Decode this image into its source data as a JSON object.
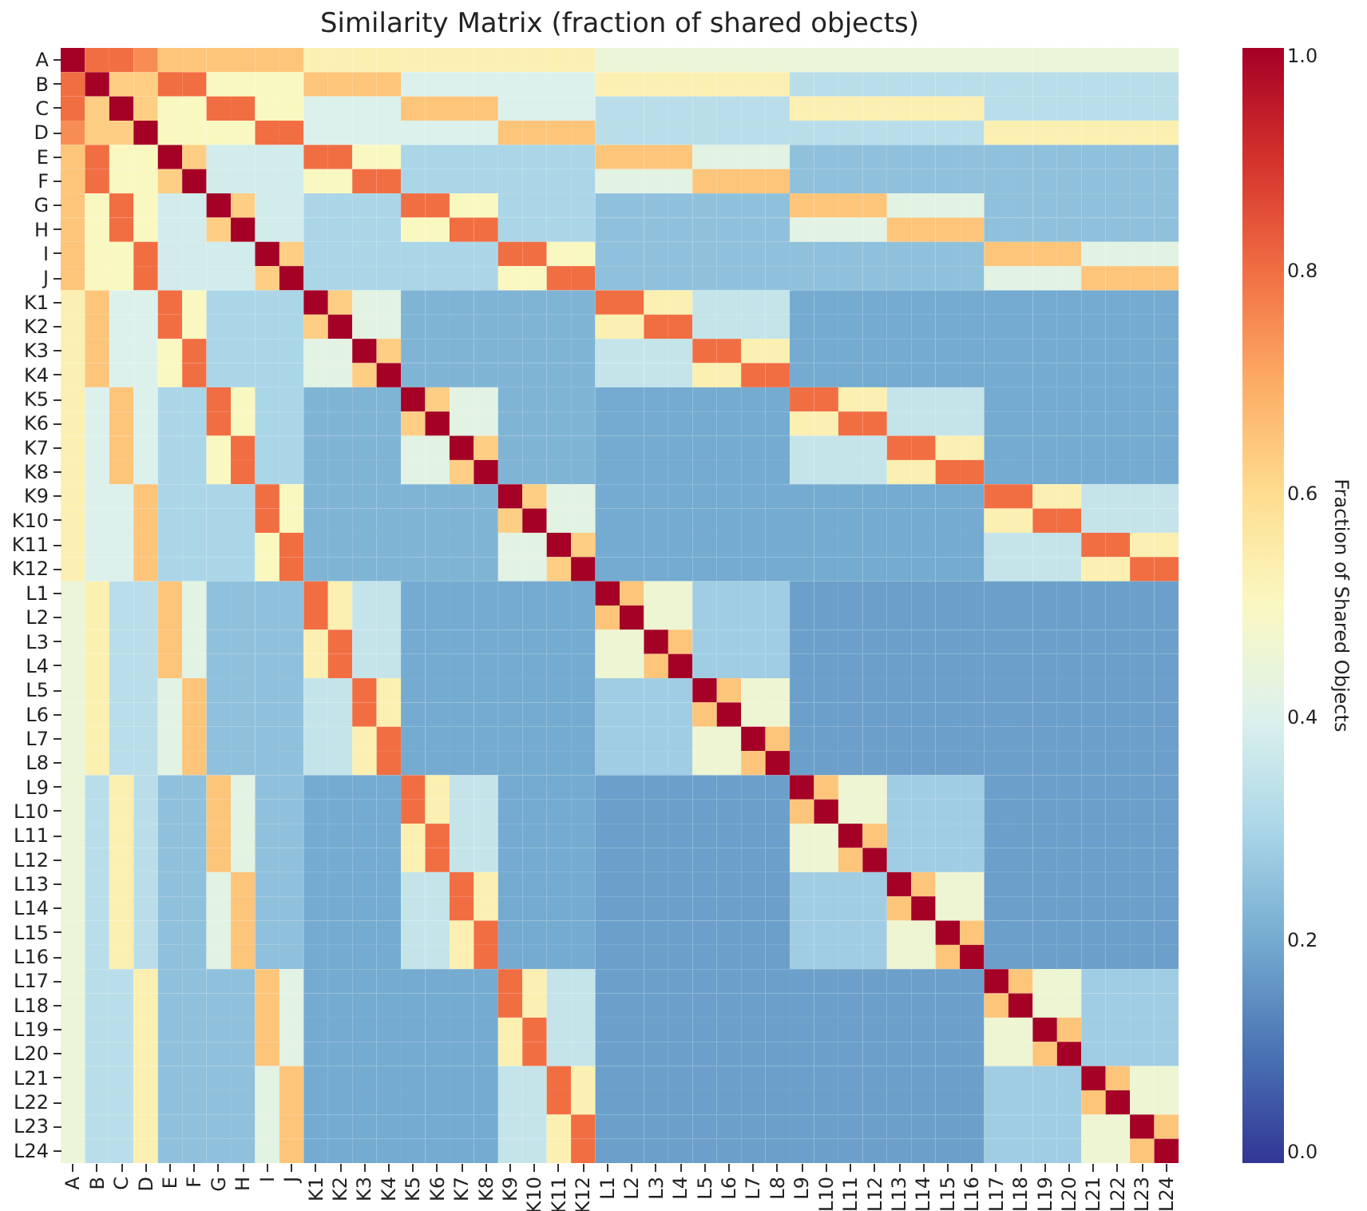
{
  "chart_data": {
    "type": "heatmap",
    "title": "Similarity Matrix (fraction of shared objects)",
    "clabel": "Fraction of Shared Objects",
    "categories": [
      "A",
      "B",
      "C",
      "D",
      "E",
      "F",
      "G",
      "H",
      "I",
      "J",
      "K1",
      "K2",
      "K3",
      "K4",
      "K5",
      "K6",
      "K7",
      "K8",
      "K9",
      "K10",
      "K11",
      "K12",
      "L1",
      "L2",
      "L3",
      "L4",
      "L5",
      "L6",
      "L7",
      "L8",
      "L9",
      "L10",
      "L11",
      "L12",
      "L13",
      "L14",
      "L15",
      "L16",
      "L17",
      "L18",
      "L19",
      "L20",
      "L21",
      "L22",
      "L23",
      "L24"
    ],
    "y_categories": [
      "A",
      "B",
      "C",
      "D",
      "E",
      "F",
      "G",
      "H",
      "I",
      "J",
      "K1",
      "K2",
      "K3",
      "K4",
      "K5",
      "K6",
      "K7",
      "K8",
      "K9",
      "K10",
      "K11",
      "K12",
      "L1",
      "L2",
      "L3",
      "L4",
      "L5",
      "L6",
      "L7",
      "L8",
      "L9",
      "L10",
      "L11",
      "L12",
      "L13",
      "L14",
      "L15",
      "L16",
      "L17",
      "L18",
      "L19",
      "L20",
      "L21",
      "L22",
      "L23",
      "L24"
    ],
    "clim": [
      0,
      1
    ],
    "cticks": [
      {
        "value": 0,
        "label": "0.0"
      },
      {
        "value": 0.2,
        "label": "0.2"
      },
      {
        "value": 0.4,
        "label": "0.4"
      },
      {
        "value": 0.6,
        "label": "0.6"
      },
      {
        "value": 0.8,
        "label": "0.8"
      },
      {
        "value": 1,
        "label": "1.0"
      }
    ],
    "cells": [
      [
        1,
        0.8,
        0.8,
        0.75,
        0.65,
        0.65,
        0.65,
        0.65,
        0.65,
        0.65,
        0.53,
        0.53,
        0.53,
        0.53,
        0.53,
        0.53,
        0.53,
        0.53,
        0.53,
        0.53,
        0.53,
        0.53,
        0.45,
        0.45,
        0.45,
        0.45,
        0.45,
        0.45,
        0.45,
        0.45,
        0.45,
        0.45,
        0.45,
        0.45,
        0.45,
        0.45,
        0.45,
        0.45,
        0.45,
        0.45,
        0.45,
        0.45,
        0.45,
        0.45,
        0.45,
        0.45
      ],
      [
        0.8,
        1,
        0.63,
        0.63,
        0.8,
        0.8,
        0.5,
        0.5,
        0.5,
        0.5,
        0.65,
        0.65,
        0.65,
        0.65,
        0.4,
        0.4,
        0.4,
        0.4,
        0.4,
        0.4,
        0.4,
        0.4,
        0.53,
        0.53,
        0.53,
        0.53,
        0.53,
        0.53,
        0.53,
        0.53,
        0.33,
        0.33,
        0.33,
        0.33,
        0.33,
        0.33,
        0.33,
        0.33,
        0.33,
        0.33,
        0.33,
        0.33,
        0.33,
        0.33,
        0.33,
        0.33
      ],
      [
        0.8,
        0.63,
        1,
        0.63,
        0.5,
        0.5,
        0.8,
        0.8,
        0.5,
        0.5,
        0.4,
        0.4,
        0.4,
        0.4,
        0.65,
        0.65,
        0.65,
        0.65,
        0.4,
        0.4,
        0.4,
        0.4,
        0.33,
        0.33,
        0.33,
        0.33,
        0.33,
        0.33,
        0.33,
        0.33,
        0.53,
        0.53,
        0.53,
        0.53,
        0.53,
        0.53,
        0.53,
        0.53,
        0.33,
        0.33,
        0.33,
        0.33,
        0.33,
        0.33,
        0.33,
        0.33
      ],
      [
        0.75,
        0.63,
        0.63,
        1,
        0.5,
        0.5,
        0.5,
        0.5,
        0.8,
        0.8,
        0.4,
        0.4,
        0.4,
        0.4,
        0.4,
        0.4,
        0.4,
        0.4,
        0.65,
        0.65,
        0.65,
        0.65,
        0.33,
        0.33,
        0.33,
        0.33,
        0.33,
        0.33,
        0.33,
        0.33,
        0.33,
        0.33,
        0.33,
        0.33,
        0.33,
        0.33,
        0.33,
        0.33,
        0.53,
        0.53,
        0.53,
        0.53,
        0.53,
        0.53,
        0.53,
        0.53
      ],
      [
        0.65,
        0.8,
        0.5,
        0.5,
        1,
        0.63,
        0.38,
        0.38,
        0.38,
        0.38,
        0.8,
        0.8,
        0.5,
        0.5,
        0.3,
        0.3,
        0.3,
        0.3,
        0.3,
        0.3,
        0.3,
        0.3,
        0.65,
        0.65,
        0.65,
        0.65,
        0.42,
        0.42,
        0.42,
        0.42,
        0.25,
        0.25,
        0.25,
        0.25,
        0.25,
        0.25,
        0.25,
        0.25,
        0.25,
        0.25,
        0.25,
        0.25,
        0.25,
        0.25,
        0.25,
        0.25
      ],
      [
        0.65,
        0.8,
        0.5,
        0.5,
        0.63,
        1,
        0.38,
        0.38,
        0.38,
        0.38,
        0.5,
        0.5,
        0.8,
        0.8,
        0.3,
        0.3,
        0.3,
        0.3,
        0.3,
        0.3,
        0.3,
        0.3,
        0.42,
        0.42,
        0.42,
        0.42,
        0.65,
        0.65,
        0.65,
        0.65,
        0.25,
        0.25,
        0.25,
        0.25,
        0.25,
        0.25,
        0.25,
        0.25,
        0.25,
        0.25,
        0.25,
        0.25,
        0.25,
        0.25,
        0.25,
        0.25
      ],
      [
        0.65,
        0.5,
        0.8,
        0.5,
        0.38,
        0.38,
        1,
        0.63,
        0.38,
        0.38,
        0.3,
        0.3,
        0.3,
        0.3,
        0.8,
        0.8,
        0.5,
        0.5,
        0.3,
        0.3,
        0.3,
        0.3,
        0.25,
        0.25,
        0.25,
        0.25,
        0.25,
        0.25,
        0.25,
        0.25,
        0.65,
        0.65,
        0.65,
        0.65,
        0.42,
        0.42,
        0.42,
        0.42,
        0.25,
        0.25,
        0.25,
        0.25,
        0.25,
        0.25,
        0.25,
        0.25
      ],
      [
        0.65,
        0.5,
        0.8,
        0.5,
        0.38,
        0.38,
        0.63,
        1,
        0.38,
        0.38,
        0.3,
        0.3,
        0.3,
        0.3,
        0.5,
        0.5,
        0.8,
        0.8,
        0.3,
        0.3,
        0.3,
        0.3,
        0.25,
        0.25,
        0.25,
        0.25,
        0.25,
        0.25,
        0.25,
        0.25,
        0.42,
        0.42,
        0.42,
        0.42,
        0.65,
        0.65,
        0.65,
        0.65,
        0.25,
        0.25,
        0.25,
        0.25,
        0.25,
        0.25,
        0.25,
        0.25
      ],
      [
        0.65,
        0.5,
        0.5,
        0.8,
        0.38,
        0.38,
        0.38,
        0.38,
        1,
        0.63,
        0.3,
        0.3,
        0.3,
        0.3,
        0.3,
        0.3,
        0.3,
        0.3,
        0.8,
        0.8,
        0.5,
        0.5,
        0.25,
        0.25,
        0.25,
        0.25,
        0.25,
        0.25,
        0.25,
        0.25,
        0.25,
        0.25,
        0.25,
        0.25,
        0.25,
        0.25,
        0.25,
        0.25,
        0.65,
        0.65,
        0.65,
        0.65,
        0.42,
        0.42,
        0.42,
        0.42
      ],
      [
        0.65,
        0.5,
        0.5,
        0.8,
        0.38,
        0.38,
        0.38,
        0.38,
        0.63,
        1,
        0.3,
        0.3,
        0.3,
        0.3,
        0.3,
        0.3,
        0.3,
        0.3,
        0.5,
        0.5,
        0.8,
        0.8,
        0.25,
        0.25,
        0.25,
        0.25,
        0.25,
        0.25,
        0.25,
        0.25,
        0.25,
        0.25,
        0.25,
        0.25,
        0.25,
        0.25,
        0.25,
        0.25,
        0.42,
        0.42,
        0.42,
        0.42,
        0.65,
        0.65,
        0.65,
        0.65
      ],
      [
        0.53,
        0.65,
        0.4,
        0.4,
        0.8,
        0.5,
        0.3,
        0.3,
        0.3,
        0.3,
        1,
        0.63,
        0.42,
        0.42,
        0.22,
        0.22,
        0.22,
        0.22,
        0.22,
        0.22,
        0.22,
        0.22,
        0.8,
        0.8,
        0.53,
        0.53,
        0.35,
        0.35,
        0.35,
        0.35,
        0.2,
        0.2,
        0.2,
        0.2,
        0.2,
        0.2,
        0.2,
        0.2,
        0.2,
        0.2,
        0.2,
        0.2,
        0.2,
        0.2,
        0.2,
        0.2
      ],
      [
        0.53,
        0.65,
        0.4,
        0.4,
        0.8,
        0.5,
        0.3,
        0.3,
        0.3,
        0.3,
        0.63,
        1,
        0.42,
        0.42,
        0.22,
        0.22,
        0.22,
        0.22,
        0.22,
        0.22,
        0.22,
        0.22,
        0.53,
        0.53,
        0.8,
        0.8,
        0.35,
        0.35,
        0.35,
        0.35,
        0.2,
        0.2,
        0.2,
        0.2,
        0.2,
        0.2,
        0.2,
        0.2,
        0.2,
        0.2,
        0.2,
        0.2,
        0.2,
        0.2,
        0.2,
        0.2
      ],
      [
        0.53,
        0.65,
        0.4,
        0.4,
        0.5,
        0.8,
        0.3,
        0.3,
        0.3,
        0.3,
        0.42,
        0.42,
        1,
        0.63,
        0.22,
        0.22,
        0.22,
        0.22,
        0.22,
        0.22,
        0.22,
        0.22,
        0.35,
        0.35,
        0.35,
        0.35,
        0.8,
        0.8,
        0.53,
        0.53,
        0.2,
        0.2,
        0.2,
        0.2,
        0.2,
        0.2,
        0.2,
        0.2,
        0.2,
        0.2,
        0.2,
        0.2,
        0.2,
        0.2,
        0.2,
        0.2
      ],
      [
        0.53,
        0.65,
        0.4,
        0.4,
        0.5,
        0.8,
        0.3,
        0.3,
        0.3,
        0.3,
        0.42,
        0.42,
        0.63,
        1,
        0.22,
        0.22,
        0.22,
        0.22,
        0.22,
        0.22,
        0.22,
        0.22,
        0.35,
        0.35,
        0.35,
        0.35,
        0.53,
        0.53,
        0.8,
        0.8,
        0.2,
        0.2,
        0.2,
        0.2,
        0.2,
        0.2,
        0.2,
        0.2,
        0.2,
        0.2,
        0.2,
        0.2,
        0.2,
        0.2,
        0.2,
        0.2
      ],
      [
        0.53,
        0.4,
        0.65,
        0.4,
        0.3,
        0.3,
        0.8,
        0.5,
        0.3,
        0.3,
        0.22,
        0.22,
        0.22,
        0.22,
        1,
        0.63,
        0.42,
        0.42,
        0.22,
        0.22,
        0.22,
        0.22,
        0.2,
        0.2,
        0.2,
        0.2,
        0.2,
        0.2,
        0.2,
        0.2,
        0.8,
        0.8,
        0.53,
        0.53,
        0.35,
        0.35,
        0.35,
        0.35,
        0.2,
        0.2,
        0.2,
        0.2,
        0.2,
        0.2,
        0.2,
        0.2
      ],
      [
        0.53,
        0.4,
        0.65,
        0.4,
        0.3,
        0.3,
        0.8,
        0.5,
        0.3,
        0.3,
        0.22,
        0.22,
        0.22,
        0.22,
        0.63,
        1,
        0.42,
        0.42,
        0.22,
        0.22,
        0.22,
        0.22,
        0.2,
        0.2,
        0.2,
        0.2,
        0.2,
        0.2,
        0.2,
        0.2,
        0.53,
        0.53,
        0.8,
        0.8,
        0.35,
        0.35,
        0.35,
        0.35,
        0.2,
        0.2,
        0.2,
        0.2,
        0.2,
        0.2,
        0.2,
        0.2
      ],
      [
        0.53,
        0.4,
        0.65,
        0.4,
        0.3,
        0.3,
        0.5,
        0.8,
        0.3,
        0.3,
        0.22,
        0.22,
        0.22,
        0.22,
        0.42,
        0.42,
        1,
        0.63,
        0.22,
        0.22,
        0.22,
        0.22,
        0.2,
        0.2,
        0.2,
        0.2,
        0.2,
        0.2,
        0.2,
        0.2,
        0.35,
        0.35,
        0.35,
        0.35,
        0.8,
        0.8,
        0.53,
        0.53,
        0.2,
        0.2,
        0.2,
        0.2,
        0.2,
        0.2,
        0.2,
        0.2
      ],
      [
        0.53,
        0.4,
        0.65,
        0.4,
        0.3,
        0.3,
        0.5,
        0.8,
        0.3,
        0.3,
        0.22,
        0.22,
        0.22,
        0.22,
        0.42,
        0.42,
        0.63,
        1,
        0.22,
        0.22,
        0.22,
        0.22,
        0.2,
        0.2,
        0.2,
        0.2,
        0.2,
        0.2,
        0.2,
        0.2,
        0.35,
        0.35,
        0.35,
        0.35,
        0.53,
        0.53,
        0.8,
        0.8,
        0.2,
        0.2,
        0.2,
        0.2,
        0.2,
        0.2,
        0.2,
        0.2
      ],
      [
        0.53,
        0.4,
        0.4,
        0.65,
        0.3,
        0.3,
        0.3,
        0.3,
        0.8,
        0.5,
        0.22,
        0.22,
        0.22,
        0.22,
        0.22,
        0.22,
        0.22,
        0.22,
        1,
        0.63,
        0.42,
        0.42,
        0.2,
        0.2,
        0.2,
        0.2,
        0.2,
        0.2,
        0.2,
        0.2,
        0.2,
        0.2,
        0.2,
        0.2,
        0.2,
        0.2,
        0.2,
        0.2,
        0.8,
        0.8,
        0.53,
        0.53,
        0.35,
        0.35,
        0.35,
        0.35
      ],
      [
        0.53,
        0.4,
        0.4,
        0.65,
        0.3,
        0.3,
        0.3,
        0.3,
        0.8,
        0.5,
        0.22,
        0.22,
        0.22,
        0.22,
        0.22,
        0.22,
        0.22,
        0.22,
        0.63,
        1,
        0.42,
        0.42,
        0.2,
        0.2,
        0.2,
        0.2,
        0.2,
        0.2,
        0.2,
        0.2,
        0.2,
        0.2,
        0.2,
        0.2,
        0.2,
        0.2,
        0.2,
        0.2,
        0.53,
        0.53,
        0.8,
        0.8,
        0.35,
        0.35,
        0.35,
        0.35
      ],
      [
        0.53,
        0.4,
        0.4,
        0.65,
        0.3,
        0.3,
        0.3,
        0.3,
        0.5,
        0.8,
        0.22,
        0.22,
        0.22,
        0.22,
        0.22,
        0.22,
        0.22,
        0.22,
        0.42,
        0.42,
        1,
        0.63,
        0.2,
        0.2,
        0.2,
        0.2,
        0.2,
        0.2,
        0.2,
        0.2,
        0.2,
        0.2,
        0.2,
        0.2,
        0.2,
        0.2,
        0.2,
        0.2,
        0.35,
        0.35,
        0.35,
        0.35,
        0.8,
        0.8,
        0.53,
        0.53
      ],
      [
        0.53,
        0.4,
        0.4,
        0.65,
        0.3,
        0.3,
        0.3,
        0.3,
        0.5,
        0.8,
        0.22,
        0.22,
        0.22,
        0.22,
        0.22,
        0.22,
        0.22,
        0.22,
        0.42,
        0.42,
        0.63,
        1,
        0.2,
        0.2,
        0.2,
        0.2,
        0.2,
        0.2,
        0.2,
        0.2,
        0.2,
        0.2,
        0.2,
        0.2,
        0.2,
        0.2,
        0.2,
        0.2,
        0.35,
        0.35,
        0.35,
        0.35,
        0.53,
        0.53,
        0.8,
        0.8
      ],
      [
        0.45,
        0.53,
        0.33,
        0.33,
        0.65,
        0.42,
        0.25,
        0.25,
        0.25,
        0.25,
        0.8,
        0.53,
        0.35,
        0.35,
        0.2,
        0.2,
        0.2,
        0.2,
        0.2,
        0.2,
        0.2,
        0.2,
        1,
        0.65,
        0.46,
        0.46,
        0.28,
        0.28,
        0.28,
        0.28,
        0.18,
        0.18,
        0.18,
        0.18,
        0.18,
        0.18,
        0.18,
        0.18,
        0.18,
        0.18,
        0.18,
        0.18,
        0.18,
        0.18,
        0.18,
        0.18
      ],
      [
        0.45,
        0.53,
        0.33,
        0.33,
        0.65,
        0.42,
        0.25,
        0.25,
        0.25,
        0.25,
        0.8,
        0.53,
        0.35,
        0.35,
        0.2,
        0.2,
        0.2,
        0.2,
        0.2,
        0.2,
        0.2,
        0.2,
        0.65,
        1,
        0.46,
        0.46,
        0.28,
        0.28,
        0.28,
        0.28,
        0.18,
        0.18,
        0.18,
        0.18,
        0.18,
        0.18,
        0.18,
        0.18,
        0.18,
        0.18,
        0.18,
        0.18,
        0.18,
        0.18,
        0.18,
        0.18
      ],
      [
        0.45,
        0.53,
        0.33,
        0.33,
        0.65,
        0.42,
        0.25,
        0.25,
        0.25,
        0.25,
        0.53,
        0.8,
        0.35,
        0.35,
        0.2,
        0.2,
        0.2,
        0.2,
        0.2,
        0.2,
        0.2,
        0.2,
        0.46,
        0.46,
        1,
        0.65,
        0.28,
        0.28,
        0.28,
        0.28,
        0.18,
        0.18,
        0.18,
        0.18,
        0.18,
        0.18,
        0.18,
        0.18,
        0.18,
        0.18,
        0.18,
        0.18,
        0.18,
        0.18,
        0.18,
        0.18
      ],
      [
        0.45,
        0.53,
        0.33,
        0.33,
        0.65,
        0.42,
        0.25,
        0.25,
        0.25,
        0.25,
        0.53,
        0.8,
        0.35,
        0.35,
        0.2,
        0.2,
        0.2,
        0.2,
        0.2,
        0.2,
        0.2,
        0.2,
        0.46,
        0.46,
        0.65,
        1,
        0.28,
        0.28,
        0.28,
        0.28,
        0.18,
        0.18,
        0.18,
        0.18,
        0.18,
        0.18,
        0.18,
        0.18,
        0.18,
        0.18,
        0.18,
        0.18,
        0.18,
        0.18,
        0.18,
        0.18
      ],
      [
        0.45,
        0.53,
        0.33,
        0.33,
        0.42,
        0.65,
        0.25,
        0.25,
        0.25,
        0.25,
        0.35,
        0.35,
        0.8,
        0.53,
        0.2,
        0.2,
        0.2,
        0.2,
        0.2,
        0.2,
        0.2,
        0.2,
        0.28,
        0.28,
        0.28,
        0.28,
        1,
        0.65,
        0.46,
        0.46,
        0.18,
        0.18,
        0.18,
        0.18,
        0.18,
        0.18,
        0.18,
        0.18,
        0.18,
        0.18,
        0.18,
        0.18,
        0.18,
        0.18,
        0.18,
        0.18
      ],
      [
        0.45,
        0.53,
        0.33,
        0.33,
        0.42,
        0.65,
        0.25,
        0.25,
        0.25,
        0.25,
        0.35,
        0.35,
        0.8,
        0.53,
        0.2,
        0.2,
        0.2,
        0.2,
        0.2,
        0.2,
        0.2,
        0.2,
        0.28,
        0.28,
        0.28,
        0.28,
        0.65,
        1,
        0.46,
        0.46,
        0.18,
        0.18,
        0.18,
        0.18,
        0.18,
        0.18,
        0.18,
        0.18,
        0.18,
        0.18,
        0.18,
        0.18,
        0.18,
        0.18,
        0.18,
        0.18
      ],
      [
        0.45,
        0.53,
        0.33,
        0.33,
        0.42,
        0.65,
        0.25,
        0.25,
        0.25,
        0.25,
        0.35,
        0.35,
        0.53,
        0.8,
        0.2,
        0.2,
        0.2,
        0.2,
        0.2,
        0.2,
        0.2,
        0.2,
        0.28,
        0.28,
        0.28,
        0.28,
        0.46,
        0.46,
        1,
        0.65,
        0.18,
        0.18,
        0.18,
        0.18,
        0.18,
        0.18,
        0.18,
        0.18,
        0.18,
        0.18,
        0.18,
        0.18,
        0.18,
        0.18,
        0.18,
        0.18
      ],
      [
        0.45,
        0.53,
        0.33,
        0.33,
        0.42,
        0.65,
        0.25,
        0.25,
        0.25,
        0.25,
        0.35,
        0.35,
        0.53,
        0.8,
        0.2,
        0.2,
        0.2,
        0.2,
        0.2,
        0.2,
        0.2,
        0.2,
        0.28,
        0.28,
        0.28,
        0.28,
        0.46,
        0.46,
        0.65,
        1,
        0.18,
        0.18,
        0.18,
        0.18,
        0.18,
        0.18,
        0.18,
        0.18,
        0.18,
        0.18,
        0.18,
        0.18,
        0.18,
        0.18,
        0.18,
        0.18
      ],
      [
        0.45,
        0.33,
        0.53,
        0.33,
        0.25,
        0.25,
        0.65,
        0.42,
        0.25,
        0.25,
        0.2,
        0.2,
        0.2,
        0.2,
        0.8,
        0.53,
        0.35,
        0.35,
        0.2,
        0.2,
        0.2,
        0.2,
        0.18,
        0.18,
        0.18,
        0.18,
        0.18,
        0.18,
        0.18,
        0.18,
        1,
        0.65,
        0.46,
        0.46,
        0.28,
        0.28,
        0.28,
        0.28,
        0.18,
        0.18,
        0.18,
        0.18,
        0.18,
        0.18,
        0.18,
        0.18
      ],
      [
        0.45,
        0.33,
        0.53,
        0.33,
        0.25,
        0.25,
        0.65,
        0.42,
        0.25,
        0.25,
        0.2,
        0.2,
        0.2,
        0.2,
        0.8,
        0.53,
        0.35,
        0.35,
        0.2,
        0.2,
        0.2,
        0.2,
        0.18,
        0.18,
        0.18,
        0.18,
        0.18,
        0.18,
        0.18,
        0.18,
        0.65,
        1,
        0.46,
        0.46,
        0.28,
        0.28,
        0.28,
        0.28,
        0.18,
        0.18,
        0.18,
        0.18,
        0.18,
        0.18,
        0.18,
        0.18
      ],
      [
        0.45,
        0.33,
        0.53,
        0.33,
        0.25,
        0.25,
        0.65,
        0.42,
        0.25,
        0.25,
        0.2,
        0.2,
        0.2,
        0.2,
        0.53,
        0.8,
        0.35,
        0.35,
        0.2,
        0.2,
        0.2,
        0.2,
        0.18,
        0.18,
        0.18,
        0.18,
        0.18,
        0.18,
        0.18,
        0.18,
        0.46,
        0.46,
        1,
        0.65,
        0.28,
        0.28,
        0.28,
        0.28,
        0.18,
        0.18,
        0.18,
        0.18,
        0.18,
        0.18,
        0.18,
        0.18
      ],
      [
        0.45,
        0.33,
        0.53,
        0.33,
        0.25,
        0.25,
        0.65,
        0.42,
        0.25,
        0.25,
        0.2,
        0.2,
        0.2,
        0.2,
        0.53,
        0.8,
        0.35,
        0.35,
        0.2,
        0.2,
        0.2,
        0.2,
        0.18,
        0.18,
        0.18,
        0.18,
        0.18,
        0.18,
        0.18,
        0.18,
        0.46,
        0.46,
        0.65,
        1,
        0.28,
        0.28,
        0.28,
        0.28,
        0.18,
        0.18,
        0.18,
        0.18,
        0.18,
        0.18,
        0.18,
        0.18
      ],
      [
        0.45,
        0.33,
        0.53,
        0.33,
        0.25,
        0.25,
        0.42,
        0.65,
        0.25,
        0.25,
        0.2,
        0.2,
        0.2,
        0.2,
        0.35,
        0.35,
        0.8,
        0.53,
        0.2,
        0.2,
        0.2,
        0.2,
        0.18,
        0.18,
        0.18,
        0.18,
        0.18,
        0.18,
        0.18,
        0.18,
        0.28,
        0.28,
        0.28,
        0.28,
        1,
        0.65,
        0.46,
        0.46,
        0.18,
        0.18,
        0.18,
        0.18,
        0.18,
        0.18,
        0.18,
        0.18
      ],
      [
        0.45,
        0.33,
        0.53,
        0.33,
        0.25,
        0.25,
        0.42,
        0.65,
        0.25,
        0.25,
        0.2,
        0.2,
        0.2,
        0.2,
        0.35,
        0.35,
        0.8,
        0.53,
        0.2,
        0.2,
        0.2,
        0.2,
        0.18,
        0.18,
        0.18,
        0.18,
        0.18,
        0.18,
        0.18,
        0.18,
        0.28,
        0.28,
        0.28,
        0.28,
        0.65,
        1,
        0.46,
        0.46,
        0.18,
        0.18,
        0.18,
        0.18,
        0.18,
        0.18,
        0.18,
        0.18
      ],
      [
        0.45,
        0.33,
        0.53,
        0.33,
        0.25,
        0.25,
        0.42,
        0.65,
        0.25,
        0.25,
        0.2,
        0.2,
        0.2,
        0.2,
        0.35,
        0.35,
        0.53,
        0.8,
        0.2,
        0.2,
        0.2,
        0.2,
        0.18,
        0.18,
        0.18,
        0.18,
        0.18,
        0.18,
        0.18,
        0.18,
        0.28,
        0.28,
        0.28,
        0.28,
        0.46,
        0.46,
        1,
        0.65,
        0.18,
        0.18,
        0.18,
        0.18,
        0.18,
        0.18,
        0.18,
        0.18
      ],
      [
        0.45,
        0.33,
        0.53,
        0.33,
        0.25,
        0.25,
        0.42,
        0.65,
        0.25,
        0.25,
        0.2,
        0.2,
        0.2,
        0.2,
        0.35,
        0.35,
        0.53,
        0.8,
        0.2,
        0.2,
        0.2,
        0.2,
        0.18,
        0.18,
        0.18,
        0.18,
        0.18,
        0.18,
        0.18,
        0.18,
        0.28,
        0.28,
        0.28,
        0.28,
        0.46,
        0.46,
        0.65,
        1,
        0.18,
        0.18,
        0.18,
        0.18,
        0.18,
        0.18,
        0.18,
        0.18
      ],
      [
        0.45,
        0.33,
        0.33,
        0.53,
        0.25,
        0.25,
        0.25,
        0.25,
        0.65,
        0.42,
        0.2,
        0.2,
        0.2,
        0.2,
        0.2,
        0.2,
        0.2,
        0.2,
        0.8,
        0.53,
        0.35,
        0.35,
        0.18,
        0.18,
        0.18,
        0.18,
        0.18,
        0.18,
        0.18,
        0.18,
        0.18,
        0.18,
        0.18,
        0.18,
        0.18,
        0.18,
        0.18,
        0.18,
        1,
        0.65,
        0.46,
        0.46,
        0.28,
        0.28,
        0.28,
        0.28
      ],
      [
        0.45,
        0.33,
        0.33,
        0.53,
        0.25,
        0.25,
        0.25,
        0.25,
        0.65,
        0.42,
        0.2,
        0.2,
        0.2,
        0.2,
        0.2,
        0.2,
        0.2,
        0.2,
        0.8,
        0.53,
        0.35,
        0.35,
        0.18,
        0.18,
        0.18,
        0.18,
        0.18,
        0.18,
        0.18,
        0.18,
        0.18,
        0.18,
        0.18,
        0.18,
        0.18,
        0.18,
        0.18,
        0.18,
        0.65,
        1,
        0.46,
        0.46,
        0.28,
        0.28,
        0.28,
        0.28
      ],
      [
        0.45,
        0.33,
        0.33,
        0.53,
        0.25,
        0.25,
        0.25,
        0.25,
        0.65,
        0.42,
        0.2,
        0.2,
        0.2,
        0.2,
        0.2,
        0.2,
        0.2,
        0.2,
        0.53,
        0.8,
        0.35,
        0.35,
        0.18,
        0.18,
        0.18,
        0.18,
        0.18,
        0.18,
        0.18,
        0.18,
        0.18,
        0.18,
        0.18,
        0.18,
        0.18,
        0.18,
        0.18,
        0.18,
        0.46,
        0.46,
        1,
        0.65,
        0.28,
        0.28,
        0.28,
        0.28
      ],
      [
        0.45,
        0.33,
        0.33,
        0.53,
        0.25,
        0.25,
        0.25,
        0.25,
        0.65,
        0.42,
        0.2,
        0.2,
        0.2,
        0.2,
        0.2,
        0.2,
        0.2,
        0.2,
        0.53,
        0.8,
        0.35,
        0.35,
        0.18,
        0.18,
        0.18,
        0.18,
        0.18,
        0.18,
        0.18,
        0.18,
        0.18,
        0.18,
        0.18,
        0.18,
        0.18,
        0.18,
        0.18,
        0.18,
        0.46,
        0.46,
        0.65,
        1,
        0.28,
        0.28,
        0.28,
        0.28
      ],
      [
        0.45,
        0.33,
        0.33,
        0.53,
        0.25,
        0.25,
        0.25,
        0.25,
        0.42,
        0.65,
        0.2,
        0.2,
        0.2,
        0.2,
        0.2,
        0.2,
        0.2,
        0.2,
        0.35,
        0.35,
        0.8,
        0.53,
        0.18,
        0.18,
        0.18,
        0.18,
        0.18,
        0.18,
        0.18,
        0.18,
        0.18,
        0.18,
        0.18,
        0.18,
        0.18,
        0.18,
        0.18,
        0.18,
        0.28,
        0.28,
        0.28,
        0.28,
        1,
        0.65,
        0.46,
        0.46
      ],
      [
        0.45,
        0.33,
        0.33,
        0.53,
        0.25,
        0.25,
        0.25,
        0.25,
        0.42,
        0.65,
        0.2,
        0.2,
        0.2,
        0.2,
        0.2,
        0.2,
        0.2,
        0.2,
        0.35,
        0.35,
        0.8,
        0.53,
        0.18,
        0.18,
        0.18,
        0.18,
        0.18,
        0.18,
        0.18,
        0.18,
        0.18,
        0.18,
        0.18,
        0.18,
        0.18,
        0.18,
        0.18,
        0.18,
        0.28,
        0.28,
        0.28,
        0.28,
        0.65,
        1,
        0.46,
        0.46
      ],
      [
        0.45,
        0.33,
        0.33,
        0.53,
        0.25,
        0.25,
        0.25,
        0.25,
        0.42,
        0.65,
        0.2,
        0.2,
        0.2,
        0.2,
        0.2,
        0.2,
        0.2,
        0.2,
        0.35,
        0.35,
        0.53,
        0.8,
        0.18,
        0.18,
        0.18,
        0.18,
        0.18,
        0.18,
        0.18,
        0.18,
        0.18,
        0.18,
        0.18,
        0.18,
        0.18,
        0.18,
        0.18,
        0.18,
        0.28,
        0.28,
        0.28,
        0.28,
        0.46,
        0.46,
        1,
        0.65
      ],
      [
        0.45,
        0.33,
        0.33,
        0.53,
        0.25,
        0.25,
        0.25,
        0.25,
        0.42,
        0.65,
        0.2,
        0.2,
        0.2,
        0.2,
        0.2,
        0.2,
        0.2,
        0.2,
        0.35,
        0.35,
        0.53,
        0.8,
        0.18,
        0.18,
        0.18,
        0.18,
        0.18,
        0.18,
        0.18,
        0.18,
        0.18,
        0.18,
        0.18,
        0.18,
        0.18,
        0.18,
        0.18,
        0.18,
        0.28,
        0.28,
        0.28,
        0.28,
        0.46,
        0.46,
        0.65,
        1
      ]
    ]
  }
}
